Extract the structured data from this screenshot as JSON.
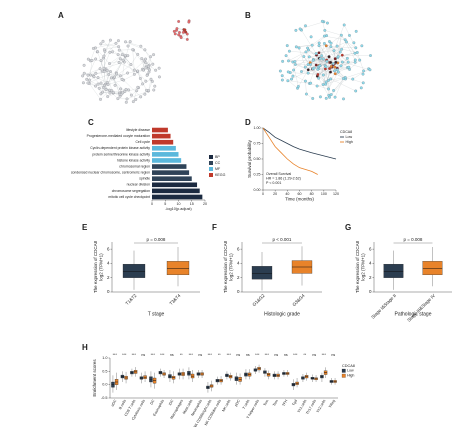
{
  "chart_data": [
    {
      "type": "network",
      "panel": "A"
    },
    {
      "type": "network",
      "panel": "B"
    },
    {
      "type": "hbar",
      "panel": "C",
      "categories": [
        "lifestyle disease",
        "Progesterone-mediated oocyte maturation",
        "Cell cycle",
        "Cyclin-dependent protein kinase activity",
        "protein serine/threonine kinase activity",
        "histone kinase activity",
        "chromosomal region",
        "condensed nuclear chromosome, centromeric region",
        "spindle",
        "nuclear division",
        "chromosome segregation",
        "mitotic cell cycle checkpoint"
      ],
      "values": [
        6,
        7,
        8,
        9,
        10,
        11,
        13,
        14,
        15,
        17,
        18,
        19
      ],
      "bar_colors": [
        "#c0392b",
        "#c0392b",
        "#c0392b",
        "#5bb8dc",
        "#5bb8dc",
        "#5bb8dc",
        "#2f4358",
        "#2f4358",
        "#2f4358",
        "#1b2a40",
        "#1b2a40",
        "#1b2a40"
      ],
      "legend": [
        {
          "name": "BP",
          "color": "#1b2a40"
        },
        {
          "name": "CC",
          "color": "#2f4358"
        },
        {
          "name": "MF",
          "color": "#5bb8dc"
        },
        {
          "name": "KEGG",
          "color": "#c0392b"
        }
      ],
      "xlabel": "-log10(p.adjust)",
      "xlim": [
        0,
        20
      ],
      "xticks": [
        0,
        5,
        10,
        15,
        20
      ]
    },
    {
      "type": "line",
      "panel": "D",
      "legend_title": "CDCA8",
      "series": [
        {
          "name": "Low",
          "color": "#2b3d50",
          "x": [
            0,
            10,
            20,
            30,
            40,
            50,
            60,
            80,
            100,
            120
          ],
          "values": [
            1,
            0.93,
            0.85,
            0.8,
            0.75,
            0.7,
            0.66,
            0.6,
            0.55,
            0.5
          ]
        },
        {
          "name": "High",
          "color": "#e8832a",
          "x": [
            0,
            10,
            20,
            30,
            40,
            50,
            60,
            80,
            90
          ],
          "values": [
            1,
            0.85,
            0.7,
            0.6,
            0.5,
            0.42,
            0.36,
            0.3,
            0.25
          ]
        }
      ],
      "annotations": [
        "Overall Survival",
        "HR = 1.86 (1.29-2.62)",
        "P < 0.001"
      ],
      "xlabel": "Time (months)",
      "ylabel": "Survival probability",
      "xlim": [
        0,
        120
      ],
      "xticks": [
        0,
        20,
        40,
        60,
        80,
        100,
        120
      ],
      "ylim": [
        0,
        1
      ],
      "yticks": [
        {
          "value": 0,
          "label": "0.00"
        },
        {
          "value": 0.25,
          "label": "0.25"
        },
        {
          "value": 0.5,
          "label": "0.50"
        },
        {
          "value": 0.75,
          "label": "0.75"
        },
        {
          "value": 1,
          "label": "1.00"
        }
      ]
    },
    {
      "type": "box",
      "panel": "E",
      "p_label": "p = 0.008",
      "categories": [
        "T1&T2",
        "T3&T4"
      ],
      "boxes": [
        [
          0.3,
          2.0,
          2.9,
          3.9,
          5.8
        ],
        [
          0.8,
          2.4,
          3.3,
          4.3,
          6.3
        ]
      ],
      "colors": [
        "#2b3d50",
        "#e8832a"
      ],
      "ylabel": [
        "The expression of CDCA8",
        "log2 (TPM+1)"
      ],
      "xlabel": "T stage",
      "ylim": [
        0,
        7
      ],
      "yticks": [
        0,
        2,
        4,
        6
      ]
    },
    {
      "type": "box",
      "panel": "F",
      "p_label": "p < 0.001",
      "categories": [
        "G1&G2",
        "G3&G4"
      ],
      "boxes": [
        [
          0.2,
          1.8,
          2.6,
          3.6,
          5.6
        ],
        [
          0.9,
          2.6,
          3.5,
          4.4,
          6.4
        ]
      ],
      "colors": [
        "#2b3d50",
        "#e8832a"
      ],
      "ylabel": [
        "The expression of CDCA8",
        "log2 (TPM+1)"
      ],
      "xlabel": "Histologic grade",
      "ylim": [
        0,
        7
      ],
      "yticks": [
        0,
        2,
        4,
        6
      ]
    },
    {
      "type": "box",
      "panel": "G",
      "p_label": "p = 0.008",
      "categories": [
        "Stage I&Stage II",
        "Stage III&Stage IV"
      ],
      "boxes": [
        [
          0.3,
          2.0,
          2.9,
          3.9,
          5.8
        ],
        [
          0.8,
          2.4,
          3.3,
          4.3,
          6.3
        ]
      ],
      "colors": [
        "#2b3d50",
        "#e8832a"
      ],
      "ylabel": [
        "The expression of CDCA8",
        "log2 (TPM+1)"
      ],
      "xlabel": "Pathologic stage",
      "ylim": [
        0,
        7
      ],
      "yticks": [
        0,
        2,
        4,
        6
      ]
    },
    {
      "type": "grouped-box",
      "panel": "H",
      "legend_title": "CDCA8",
      "ylabel": "Enrichment scores",
      "categories": [
        "aDC",
        "B cells",
        "CD8 T cells",
        "Cytotoxic cells",
        "DC",
        "Eosinophils",
        "iDC",
        "Macrophages",
        "Mast cells",
        "Neutrophils",
        "NK CD56bright cells",
        "NK CD56dim cells",
        "NK cells",
        "pDC",
        "T cells",
        "T helper cells",
        "Tcm",
        "Tem",
        "TFH",
        "Tgd",
        "Th1 cells",
        "Th17 cells",
        "Th2 cells",
        "TReg"
      ],
      "significance": [
        "***",
        "***",
        "***",
        "ns",
        "***",
        "***",
        "ns",
        "**",
        "***",
        "ns",
        "***",
        "**",
        "***",
        "ns",
        "ns",
        "***",
        "***",
        "ns",
        "ns",
        "***",
        "**",
        "ns",
        "***",
        "ns"
      ],
      "series": [
        {
          "name": "Low",
          "color": "#2b3d50",
          "boxes": [
            [
              -0.3,
              -0.1,
              0,
              0.1,
              0.35
            ],
            [
              0.1,
              0.25,
              0.3,
              0.36,
              0.5
            ],
            [
              0.3,
              0.4,
              0.45,
              0.5,
              0.6
            ],
            [
              0.05,
              0.2,
              0.25,
              0.3,
              0.45
            ],
            [
              -0.1,
              0.1,
              0.2,
              0.3,
              0.5
            ],
            [
              0.3,
              0.4,
              0.45,
              0.5,
              0.6
            ],
            [
              0.1,
              0.25,
              0.3,
              0.38,
              0.55
            ],
            [
              0.2,
              0.35,
              0.4,
              0.45,
              0.6
            ],
            [
              0.2,
              0.35,
              0.42,
              0.5,
              0.65
            ],
            [
              0.25,
              0.35,
              0.4,
              0.45,
              0.55
            ],
            [
              -0.3,
              -0.15,
              -0.1,
              -0.05,
              0.1
            ],
            [
              0,
              0.1,
              0.15,
              0.2,
              0.3
            ],
            [
              0.2,
              0.3,
              0.35,
              0.4,
              0.5
            ],
            [
              0,
              0.15,
              0.22,
              0.3,
              0.45
            ],
            [
              0.2,
              0.32,
              0.38,
              0.44,
              0.58
            ],
            [
              0.4,
              0.5,
              0.55,
              0.6,
              0.7
            ],
            [
              0.3,
              0.42,
              0.47,
              0.52,
              0.62
            ],
            [
              0.2,
              0.3,
              0.35,
              0.4,
              0.5
            ],
            [
              0.3,
              0.38,
              0.42,
              0.46,
              0.55
            ],
            [
              -0.2,
              -0.05,
              0,
              0.05,
              0.2
            ],
            [
              0.1,
              0.2,
              0.25,
              0.3,
              0.4
            ],
            [
              0.1,
              0.2,
              0.24,
              0.28,
              0.38
            ],
            [
              0.1,
              0.25,
              0.3,
              0.35,
              0.45
            ],
            [
              0,
              0.08,
              0.12,
              0.16,
              0.25
            ]
          ]
        },
        {
          "name": "High",
          "color": "#e8832a",
          "boxes": [
            [
              -0.2,
              0,
              0.1,
              0.2,
              0.45
            ],
            [
              0.05,
              0.2,
              0.25,
              0.32,
              0.48
            ],
            [
              0.3,
              0.42,
              0.48,
              0.54,
              0.66
            ],
            [
              0.1,
              0.22,
              0.28,
              0.34,
              0.5
            ],
            [
              -0.15,
              0.05,
              0.15,
              0.25,
              0.45
            ],
            [
              0.25,
              0.35,
              0.4,
              0.45,
              0.55
            ],
            [
              0.05,
              0.2,
              0.26,
              0.32,
              0.5
            ],
            [
              0.2,
              0.34,
              0.4,
              0.46,
              0.6
            ],
            [
              0.1,
              0.25,
              0.32,
              0.4,
              0.55
            ],
            [
              0.25,
              0.35,
              0.4,
              0.45,
              0.55
            ],
            [
              -0.25,
              -0.1,
              -0.05,
              0,
              0.15
            ],
            [
              0,
              0.1,
              0.15,
              0.2,
              0.32
            ],
            [
              0.15,
              0.25,
              0.3,
              0.35,
              0.45
            ],
            [
              0,
              0.12,
              0.2,
              0.28,
              0.42
            ],
            [
              0.2,
              0.32,
              0.38,
              0.44,
              0.58
            ],
            [
              0.45,
              0.55,
              0.6,
              0.65,
              0.75
            ],
            [
              0.2,
              0.32,
              0.38,
              0.43,
              0.53
            ],
            [
              0.2,
              0.3,
              0.35,
              0.4,
              0.5
            ],
            [
              0.3,
              0.38,
              0.42,
              0.46,
              0.55
            ],
            [
              -0.1,
              0,
              0.05,
              0.1,
              0.25
            ],
            [
              0.15,
              0.25,
              0.3,
              0.35,
              0.45
            ],
            [
              0.1,
              0.18,
              0.22,
              0.26,
              0.36
            ],
            [
              0.25,
              0.38,
              0.45,
              0.52,
              0.65
            ],
            [
              0,
              0.08,
              0.12,
              0.16,
              0.25
            ]
          ]
        }
      ],
      "ylim": [
        -0.5,
        1
      ],
      "yticks": [
        -0.5,
        {
          "value": 0,
          "label": "0.0"
        },
        0.5,
        {
          "value": 1,
          "label": "1.0"
        }
      ]
    }
  ]
}
